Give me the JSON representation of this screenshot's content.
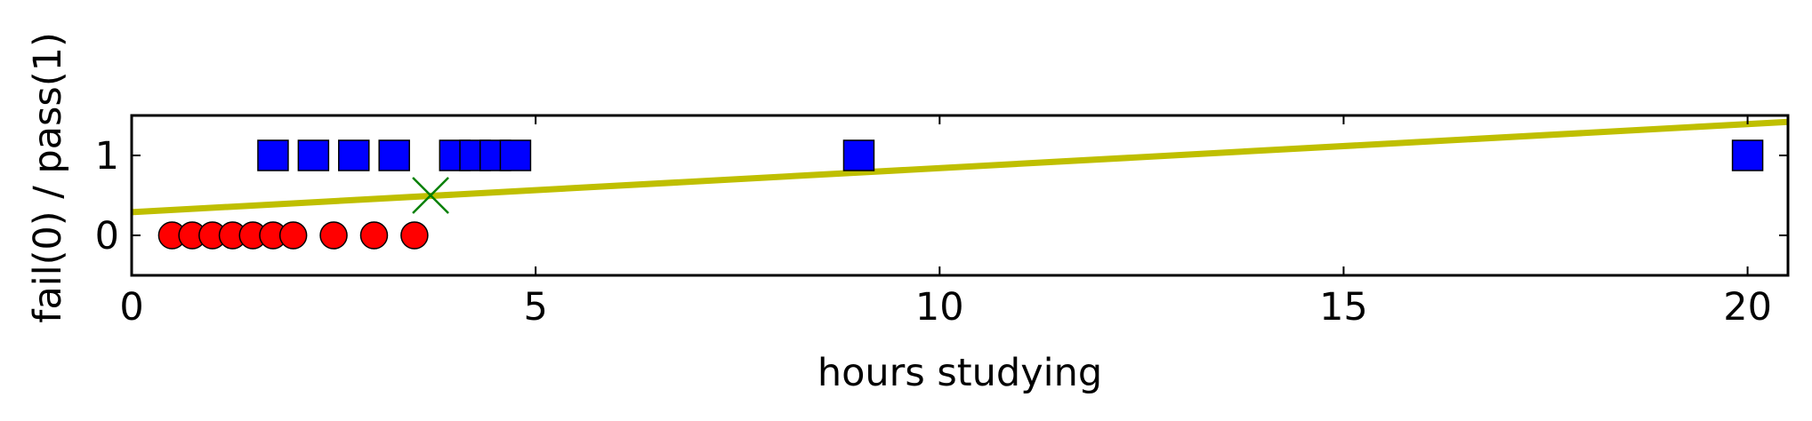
{
  "chart_data": {
    "type": "scatter",
    "title": "",
    "xlabel": "hours studying",
    "ylabel": "fail(0) / pass(1)",
    "xlim": [
      0,
      20.5
    ],
    "ylim": [
      -0.5,
      1.5
    ],
    "xticks": [
      0,
      5,
      10,
      15,
      20
    ],
    "yticks": [
      0,
      1
    ],
    "xtick_labels": [
      "0",
      "5",
      "10",
      "15",
      "20"
    ],
    "ytick_labels": [
      "0",
      "1"
    ],
    "grid": false,
    "series": [
      {
        "kind": "points",
        "marker": "circle",
        "color": "#ff0000",
        "points": [
          {
            "x": 0.5,
            "y": 0
          },
          {
            "x": 0.75,
            "y": 0
          },
          {
            "x": 1.0,
            "y": 0
          },
          {
            "x": 1.25,
            "y": 0
          },
          {
            "x": 1.5,
            "y": 0
          },
          {
            "x": 1.75,
            "y": 0
          },
          {
            "x": 2.0,
            "y": 0
          },
          {
            "x": 2.5,
            "y": 0
          },
          {
            "x": 3.0,
            "y": 0
          },
          {
            "x": 3.5,
            "y": 0
          }
        ]
      },
      {
        "kind": "points",
        "marker": "square",
        "color": "#0000ff",
        "points": [
          {
            "x": 1.75,
            "y": 1
          },
          {
            "x": 2.25,
            "y": 1
          },
          {
            "x": 2.75,
            "y": 1
          },
          {
            "x": 3.25,
            "y": 1
          },
          {
            "x": 4.0,
            "y": 1
          },
          {
            "x": 4.25,
            "y": 1
          },
          {
            "x": 4.5,
            "y": 1
          },
          {
            "x": 4.75,
            "y": 1
          },
          {
            "x": 9.0,
            "y": 1
          },
          {
            "x": 20.0,
            "y": 1
          }
        ]
      },
      {
        "kind": "line",
        "color": "#bfbf00",
        "points": [
          {
            "x": 0,
            "y": 0.29
          },
          {
            "x": 20.5,
            "y": 1.42
          }
        ]
      },
      {
        "kind": "points",
        "marker": "x",
        "color": "#008000",
        "points": [
          {
            "x": 3.7,
            "y": 0.5
          }
        ]
      }
    ]
  }
}
